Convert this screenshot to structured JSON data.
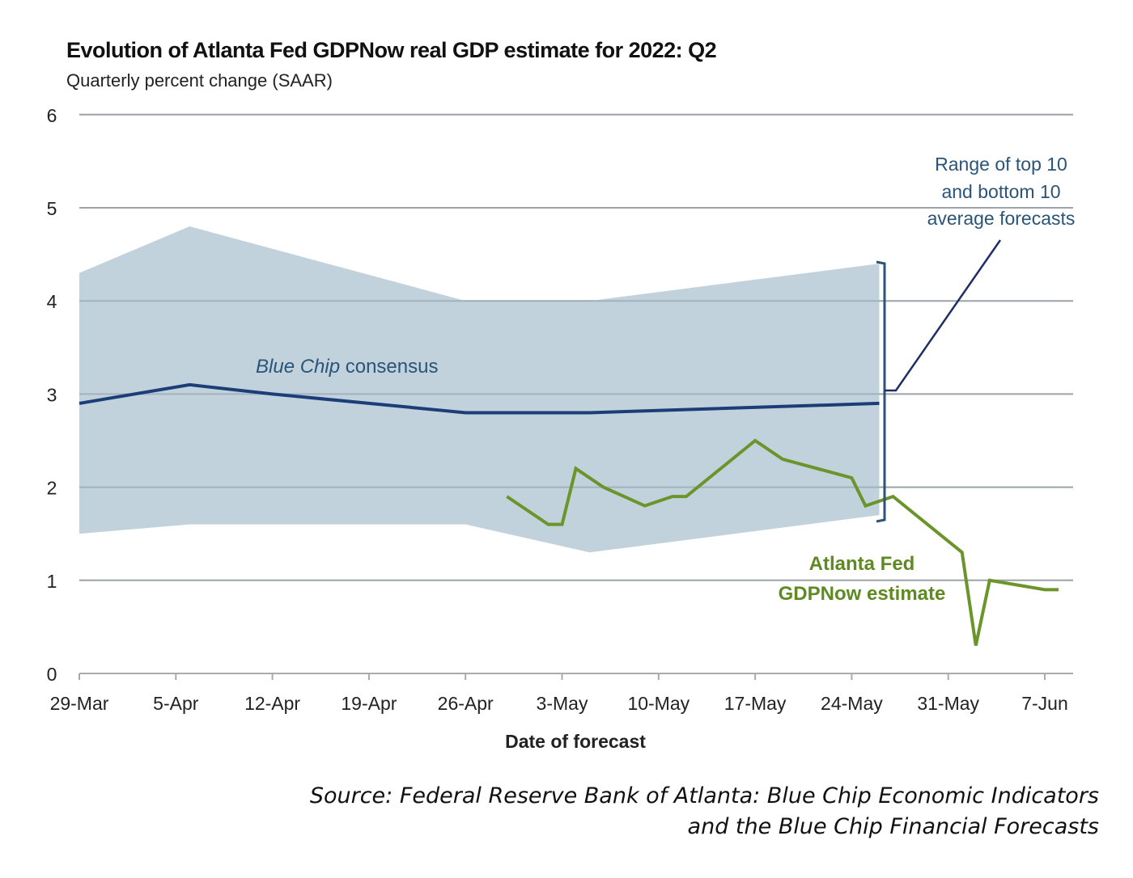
{
  "chart_data": {
    "type": "line",
    "title": "Evolution of Atlanta Fed GDPNow real GDP estimate for 2022: Q2",
    "subtitle": "Quarterly percent change (SAAR)",
    "xlabel": "Date of forecast",
    "ylabel": "",
    "ylim": [
      0,
      6
    ],
    "yticks": [
      "0",
      "1",
      "2",
      "3",
      "4",
      "5",
      "6"
    ],
    "xlim_days": [
      0,
      72
    ],
    "x_unit": "days since 29-Mar-2022",
    "xticks": [
      {
        "day": 0,
        "label": "29-Mar"
      },
      {
        "day": 7,
        "label": "5-Apr"
      },
      {
        "day": 14,
        "label": "12-Apr"
      },
      {
        "day": 21,
        "label": "19-Apr"
      },
      {
        "day": 28,
        "label": "26-Apr"
      },
      {
        "day": 35,
        "label": "3-May"
      },
      {
        "day": 42,
        "label": "10-May"
      },
      {
        "day": 49,
        "label": "17-May"
      },
      {
        "day": 56,
        "label": "24-May"
      },
      {
        "day": 63,
        "label": "31-May"
      },
      {
        "day": 70,
        "label": "7-Jun"
      }
    ],
    "grid": true,
    "colors": {
      "band": "#c2d2dc",
      "blue_chip": "#1b3d78",
      "gdpnow": "#6b952a",
      "grid": "#b8b8b8",
      "annotation_blue": "#2a5478",
      "annotation_green": "#5f8a22"
    },
    "band": {
      "name": "Range of top 10 and bottom 10 average forecasts",
      "upper": [
        {
          "day": 0,
          "value": 4.3
        },
        {
          "day": 8,
          "value": 4.8
        },
        {
          "day": 28,
          "value": 4.0
        },
        {
          "day": 37,
          "value": 4.0
        },
        {
          "day": 58,
          "value": 4.4
        }
      ],
      "lower": [
        {
          "day": 0,
          "value": 1.5
        },
        {
          "day": 8,
          "value": 1.6
        },
        {
          "day": 28,
          "value": 1.6
        },
        {
          "day": 37,
          "value": 1.3
        },
        {
          "day": 58,
          "value": 1.7
        }
      ]
    },
    "series": [
      {
        "name": "Blue Chip consensus",
        "points": [
          {
            "day": 0,
            "value": 2.9
          },
          {
            "day": 8,
            "value": 3.1
          },
          {
            "day": 14,
            "value": 3.0
          },
          {
            "day": 28,
            "value": 2.8
          },
          {
            "day": 37,
            "value": 2.8
          },
          {
            "day": 58,
            "value": 2.9
          }
        ]
      },
      {
        "name": "Atlanta Fed GDPNow estimate",
        "points": [
          {
            "day": 31,
            "value": 1.9
          },
          {
            "day": 34,
            "value": 1.6
          },
          {
            "day": 35,
            "value": 1.6
          },
          {
            "day": 36,
            "value": 2.2
          },
          {
            "day": 38,
            "value": 2.0
          },
          {
            "day": 41,
            "value": 1.8
          },
          {
            "day": 43,
            "value": 1.9
          },
          {
            "day": 44,
            "value": 1.9
          },
          {
            "day": 49,
            "value": 2.5
          },
          {
            "day": 51,
            "value": 2.3
          },
          {
            "day": 56,
            "value": 2.1
          },
          {
            "day": 57,
            "value": 1.8
          },
          {
            "day": 59,
            "value": 1.9
          },
          {
            "day": 64,
            "value": 1.3
          },
          {
            "day": 65,
            "value": 0.3
          },
          {
            "day": 66,
            "value": 1.0
          },
          {
            "day": 70,
            "value": 0.9
          },
          {
            "day": 71,
            "value": 0.9
          }
        ]
      }
    ],
    "annotations": {
      "band_label": [
        "Range of top 10",
        "and bottom 10",
        "average forecasts"
      ],
      "blue_chip_label_italic": "Blue Chip",
      "blue_chip_label_rest": " consensus",
      "gdpnow_label": [
        "Atlanta Fed",
        "GDPNow estimate"
      ]
    },
    "legend": "inline annotations"
  },
  "source": {
    "line1": "Source: Federal Reserve Bank of Atlanta: Blue Chip Economic Indicators",
    "line2": "and the Blue Chip Financial Forecasts"
  }
}
